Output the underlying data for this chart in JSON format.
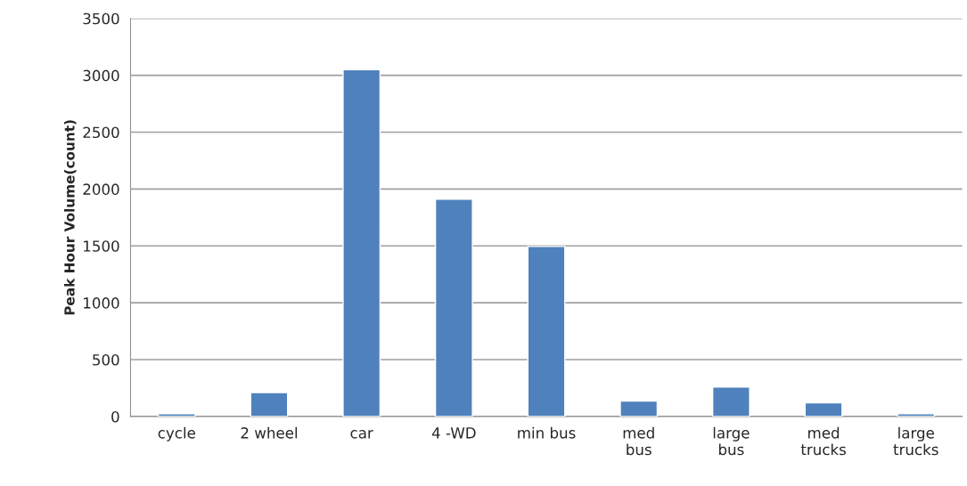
{
  "chart_data": {
    "type": "bar",
    "ylabel": "Peak Hour Volume(count)",
    "categories": [
      "cycle",
      "2 wheel",
      "car",
      "4 -WD",
      "min bus",
      "med\nbus",
      "large\nbus",
      "med\ntrucks",
      "large\ntrucks"
    ],
    "values": [
      25,
      210,
      3050,
      1910,
      1495,
      135,
      260,
      120,
      25
    ],
    "color": "#4f81bd",
    "ylim": [
      0,
      3500
    ],
    "yticks": [
      0,
      500,
      1000,
      1500,
      2000,
      2500,
      3000,
      3500
    ],
    "grid": "y",
    "legend": false
  }
}
